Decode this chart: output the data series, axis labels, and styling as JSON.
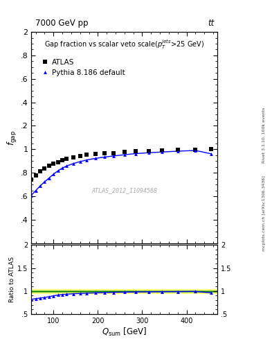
{
  "title_top": "7000 GeV pp",
  "title_right": "tt",
  "ylabel_main": "$f_{\\mathrm{gap}}$",
  "ylabel_ratio": "Ratio to ATLAS",
  "xlabel": "$Q_{\\mathrm{sum}}$ [GeV]",
  "annotation": "Gap fraction vs scalar veto scale($p_{T}^{jets}$>25 GeV)",
  "watermark": "ATLAS_2012_I1094568",
  "right_label": "Rivet 3.1.10, 100k events",
  "right_label2": "mcplots.cern.ch [arXiv:1306.3436]",
  "atlas_x": [
    50,
    60,
    70,
    80,
    90,
    100,
    110,
    120,
    130,
    145,
    160,
    175,
    195,
    215,
    235,
    260,
    285,
    315,
    345,
    380,
    420,
    455
  ],
  "atlas_y": [
    0.74,
    0.775,
    0.81,
    0.838,
    0.858,
    0.877,
    0.892,
    0.906,
    0.917,
    0.932,
    0.942,
    0.952,
    0.959,
    0.964,
    0.969,
    0.977,
    0.982,
    0.986,
    0.99,
    0.994,
    0.997,
    1.0
  ],
  "pythia_x": [
    50,
    60,
    70,
    80,
    90,
    100,
    110,
    120,
    130,
    145,
    160,
    175,
    195,
    215,
    235,
    260,
    285,
    315,
    345,
    380,
    420,
    455
  ],
  "pythia_y": [
    0.608,
    0.648,
    0.688,
    0.723,
    0.755,
    0.788,
    0.816,
    0.84,
    0.858,
    0.879,
    0.895,
    0.909,
    0.923,
    0.934,
    0.943,
    0.954,
    0.963,
    0.971,
    0.977,
    0.984,
    0.99,
    0.962
  ],
  "ratio_y": [
    0.821,
    0.836,
    0.849,
    0.863,
    0.879,
    0.898,
    0.915,
    0.927,
    0.933,
    0.943,
    0.949,
    0.955,
    0.962,
    0.968,
    0.974,
    0.977,
    0.981,
    0.985,
    0.987,
    0.99,
    0.993,
    0.962
  ],
  "xlim": [
    50,
    470
  ],
  "ylim_main": [
    0.2,
    2.0
  ],
  "ylim_ratio": [
    0.5,
    2.0
  ],
  "yticks_main": [
    0.4,
    0.6,
    0.8,
    1.0,
    1.2,
    1.4,
    1.6,
    1.8,
    2.0
  ],
  "yticks_ratio": [
    0.5,
    1.0,
    1.5,
    2.0
  ],
  "xticks": [
    100,
    200,
    300,
    400
  ],
  "atlas_color": "black",
  "pythia_color": "blue",
  "band_color_yellow": "#ffff80",
  "band_color_green": "#80c040"
}
